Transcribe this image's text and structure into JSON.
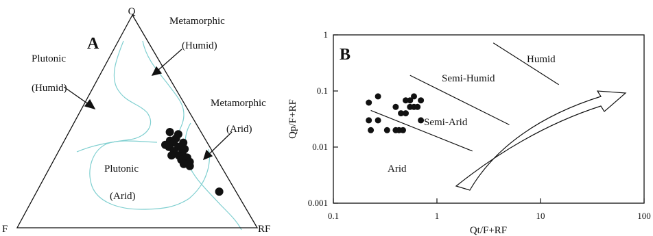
{
  "colors": {
    "boundary": "#7fcfd0",
    "ink": "#111111",
    "background": "#ffffff"
  },
  "panel_a": {
    "letter": "A",
    "vertex_q": "Q",
    "vertex_f": "F",
    "vertex_rf": "RF",
    "labels": {
      "metamorphic_humid_1": "Metamorphic",
      "metamorphic_humid_2": "(Humid)",
      "plutonic_humid_1": "Plutonic",
      "plutonic_humid_2": "(Humid)",
      "metamorphic_arid_1": "Metamorphic",
      "metamorphic_arid_2": "(Arid)",
      "plutonic_arid_1": "Plutonic",
      "plutonic_arid_2": "(Arid)"
    }
  },
  "panel_b": {
    "letter": "B",
    "ylabel": "Qp/F+RF",
    "xlabel": "Qt/F+RF",
    "x_ticks": [
      "0.1",
      "1",
      "10",
      "100"
    ],
    "y_ticks": [
      "1",
      "0.1",
      "0.01",
      "0.001"
    ],
    "regions": {
      "humid": "Humid",
      "semi_humid": "Semi-Humid",
      "semi_arid": "Semi-Arid",
      "arid": "Arid"
    }
  },
  "chart_data": [
    {
      "type": "scatter",
      "subtype": "ternary",
      "title": "",
      "axes": [
        "Q",
        "F",
        "RF"
      ],
      "note": "sample points (fractions Q, F, RF)",
      "points": [
        [
          0.45,
          0.13,
          0.42
        ],
        [
          0.44,
          0.1,
          0.46
        ],
        [
          0.42,
          0.12,
          0.46
        ],
        [
          0.41,
          0.15,
          0.44
        ],
        [
          0.4,
          0.14,
          0.46
        ],
        [
          0.4,
          0.1,
          0.5
        ],
        [
          0.38,
          0.13,
          0.49
        ],
        [
          0.37,
          0.11,
          0.52
        ],
        [
          0.39,
          0.18,
          0.43
        ],
        [
          0.38,
          0.17,
          0.45
        ],
        [
          0.36,
          0.16,
          0.48
        ],
        [
          0.35,
          0.13,
          0.52
        ],
        [
          0.34,
          0.15,
          0.51
        ],
        [
          0.33,
          0.12,
          0.55
        ],
        [
          0.34,
          0.18,
          0.48
        ],
        [
          0.32,
          0.15,
          0.53
        ],
        [
          0.31,
          0.12,
          0.57
        ],
        [
          0.3,
          0.15,
          0.55
        ],
        [
          0.29,
          0.13,
          0.58
        ],
        [
          0.17,
          0.07,
          0.76
        ]
      ]
    },
    {
      "type": "scatter",
      "title": "",
      "xlabel": "Qt/F+RF",
      "ylabel": "Qp/F+RF",
      "xscale": "log",
      "yscale": "log",
      "xlim": [
        0.1,
        100
      ],
      "ylim": [
        0.001,
        1
      ],
      "points": [
        [
          0.22,
          0.062
        ],
        [
          0.27,
          0.08
        ],
        [
          0.22,
          0.03
        ],
        [
          0.27,
          0.03
        ],
        [
          0.23,
          0.02
        ],
        [
          0.33,
          0.02
        ],
        [
          0.4,
          0.02
        ],
        [
          0.43,
          0.02
        ],
        [
          0.47,
          0.02
        ],
        [
          0.4,
          0.052
        ],
        [
          0.45,
          0.04
        ],
        [
          0.5,
          0.04
        ],
        [
          0.55,
          0.068
        ],
        [
          0.6,
          0.08
        ],
        [
          0.55,
          0.052
        ],
        [
          0.6,
          0.052
        ],
        [
          0.65,
          0.052
        ],
        [
          0.7,
          0.068
        ],
        [
          0.7,
          0.03
        ],
        [
          0.5,
          0.068
        ]
      ],
      "boundaries": [
        {
          "x": [
            0.23,
            2.2
          ],
          "y": [
            0.045,
            0.0085
          ]
        },
        {
          "x": [
            0.55,
            5.0
          ],
          "y": [
            0.19,
            0.025
          ]
        },
        {
          "x": [
            3.5,
            15
          ],
          "y": [
            0.72,
            0.13
          ]
        }
      ]
    }
  ]
}
